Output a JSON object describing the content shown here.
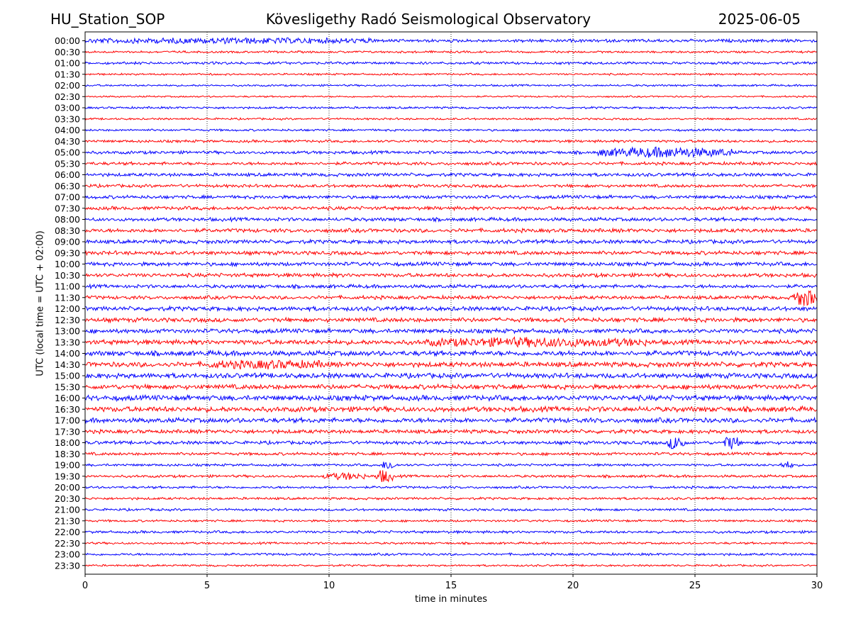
{
  "header": {
    "station": "HU_Station_SOP",
    "observatory": "Kövesligethy Radó Seismological Observatory",
    "date": "2025-06-05"
  },
  "chart_data": {
    "type": "line",
    "title": "Kövesligethy Radó Seismological Observatory",
    "xlabel": "time in minutes",
    "ylabel": "UTC (local time = UTC + 02:00)",
    "xlim": [
      0,
      30
    ],
    "x_ticks": [
      0,
      5,
      10,
      15,
      20,
      25,
      30
    ],
    "grid": "vertical dotted",
    "colors": {
      "even_rows": "#0000ff",
      "odd_rows": "#ff0000"
    },
    "rows": [
      {
        "label": "00:00",
        "noise": 0.26,
        "events": [
          {
            "start": 0.2,
            "end": 12,
            "amp": 0.35
          }
        ]
      },
      {
        "label": "00:30",
        "noise": 0.18,
        "events": []
      },
      {
        "label": "01:00",
        "noise": 0.22,
        "events": []
      },
      {
        "label": "01:30",
        "noise": 0.16,
        "events": []
      },
      {
        "label": "02:00",
        "noise": 0.16,
        "events": []
      },
      {
        "label": "02:30",
        "noise": 0.14,
        "events": []
      },
      {
        "label": "03:00",
        "noise": 0.18,
        "events": []
      },
      {
        "label": "03:30",
        "noise": 0.16,
        "events": []
      },
      {
        "label": "04:00",
        "noise": 0.18,
        "events": []
      },
      {
        "label": "04:30",
        "noise": 0.22,
        "events": []
      },
      {
        "label": "05:00",
        "noise": 0.26,
        "events": [
          {
            "start": 21,
            "end": 26.5,
            "amp": 0.85
          }
        ]
      },
      {
        "label": "05:30",
        "noise": 0.26,
        "events": []
      },
      {
        "label": "06:00",
        "noise": 0.28,
        "events": []
      },
      {
        "label": "06:30",
        "noise": 0.26,
        "events": []
      },
      {
        "label": "07:00",
        "noise": 0.28,
        "events": []
      },
      {
        "label": "07:30",
        "noise": 0.3,
        "events": []
      },
      {
        "label": "08:00",
        "noise": 0.3,
        "events": []
      },
      {
        "label": "08:30",
        "noise": 0.32,
        "events": []
      },
      {
        "label": "09:00",
        "noise": 0.32,
        "events": []
      },
      {
        "label": "09:30",
        "noise": 0.32,
        "events": []
      },
      {
        "label": "10:00",
        "noise": 0.32,
        "events": []
      },
      {
        "label": "10:30",
        "noise": 0.32,
        "events": []
      },
      {
        "label": "11:00",
        "noise": 0.3,
        "events": []
      },
      {
        "label": "11:30",
        "noise": 0.3,
        "events": [
          {
            "start": 29,
            "end": 30,
            "amp": 1.6
          }
        ]
      },
      {
        "label": "12:00",
        "noise": 0.36,
        "events": []
      },
      {
        "label": "12:30",
        "noise": 0.36,
        "events": []
      },
      {
        "label": "13:00",
        "noise": 0.36,
        "events": []
      },
      {
        "label": "13:30",
        "noise": 0.4,
        "events": [
          {
            "start": 14,
            "end": 23,
            "amp": 0.6
          }
        ]
      },
      {
        "label": "14:00",
        "noise": 0.42,
        "events": []
      },
      {
        "label": "14:30",
        "noise": 0.42,
        "events": [
          {
            "start": 5,
            "end": 10,
            "amp": 0.5
          }
        ]
      },
      {
        "label": "15:00",
        "noise": 0.42,
        "events": []
      },
      {
        "label": "15:30",
        "noise": 0.4,
        "events": []
      },
      {
        "label": "16:00",
        "noise": 0.44,
        "events": []
      },
      {
        "label": "16:30",
        "noise": 0.44,
        "events": []
      },
      {
        "label": "17:00",
        "noise": 0.4,
        "events": []
      },
      {
        "label": "17:30",
        "noise": 0.32,
        "events": []
      },
      {
        "label": "18:00",
        "noise": 0.28,
        "events": [
          {
            "start": 23.9,
            "end": 24.6,
            "amp": 1.3
          },
          {
            "start": 26.2,
            "end": 26.8,
            "amp": 1.2
          }
        ]
      },
      {
        "label": "18:30",
        "noise": 0.24,
        "events": []
      },
      {
        "label": "19:00",
        "noise": 0.2,
        "events": [
          {
            "start": 12.2,
            "end": 12.7,
            "amp": 0.9
          },
          {
            "start": 28.5,
            "end": 29,
            "amp": 0.6
          }
        ]
      },
      {
        "label": "19:30",
        "noise": 0.22,
        "events": [
          {
            "start": 9.8,
            "end": 11.5,
            "amp": 0.55
          },
          {
            "start": 11.9,
            "end": 12.6,
            "amp": 1.2
          }
        ]
      },
      {
        "label": "20:00",
        "noise": 0.2,
        "events": []
      },
      {
        "label": "20:30",
        "noise": 0.2,
        "events": []
      },
      {
        "label": "21:00",
        "noise": 0.2,
        "events": []
      },
      {
        "label": "21:30",
        "noise": 0.18,
        "events": []
      },
      {
        "label": "22:00",
        "noise": 0.22,
        "events": []
      },
      {
        "label": "22:30",
        "noise": 0.18,
        "events": []
      },
      {
        "label": "23:00",
        "noise": 0.2,
        "events": []
      },
      {
        "label": "23:30",
        "noise": 0.16,
        "events": []
      }
    ]
  }
}
